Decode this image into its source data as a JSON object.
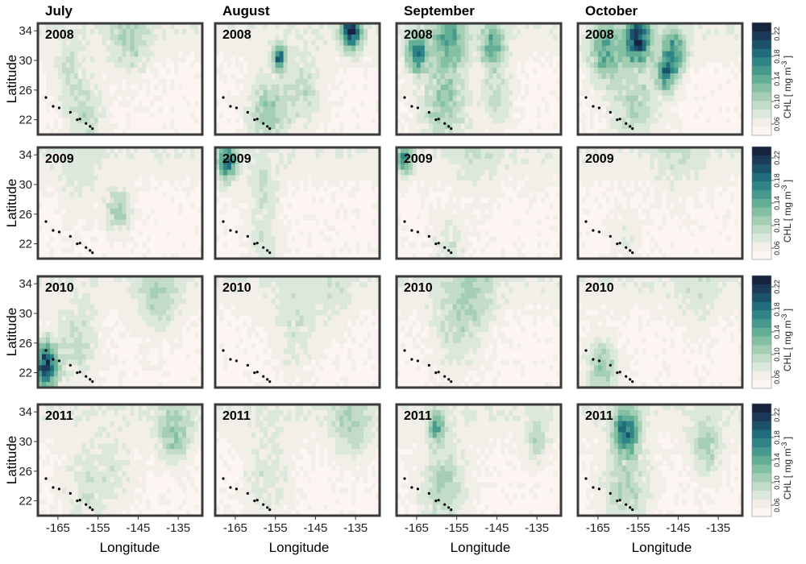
{
  "chart_data": {
    "type": "heatmap",
    "months": [
      "July",
      "August",
      "September",
      "October"
    ],
    "years": [
      "2008",
      "2009",
      "2010",
      "2011"
    ],
    "xlabel": "Longitude",
    "ylabel": "Latitude",
    "x_ticks": [
      -165,
      -155,
      -145,
      -135
    ],
    "x_tick_labels": [
      "-165",
      "-155",
      "-145",
      "-135"
    ],
    "xlim": [
      -170,
      -129
    ],
    "y_ticks": [
      22,
      26,
      30,
      34
    ],
    "y_tick_labels": [
      "22",
      "26",
      "30",
      "34"
    ],
    "ylim": [
      20,
      35
    ],
    "colorbar": {
      "label": "CHL [ mg m^-3 ]",
      "label_main": "CHL [ mg m",
      "label_exp": "-3",
      "label_close": " ]",
      "ticks": [
        0.06,
        0.1,
        0.14,
        0.18,
        0.22
      ],
      "tick_labels": [
        "0.06",
        "0.10",
        "0.14",
        "0.18",
        "0.22"
      ],
      "range": [
        0.04,
        0.24
      ]
    },
    "colors": [
      "#fdf5f2",
      "#f2efe9",
      "#dde8dc",
      "#c3dcc9",
      "#a4cfb5",
      "#84c0a3",
      "#63ae95",
      "#469a8d",
      "#2f8586",
      "#1f6c7b",
      "#1b526a",
      "#1a3a57",
      "#16243e"
    ],
    "hotspots": [
      {
        "panel": [
          0,
          0
        ],
        "lon": -147,
        "lat": 33,
        "r": 5,
        "v": 0.08
      },
      {
        "panel": [
          0,
          0
        ],
        "lon": -158,
        "lat": 22.5,
        "r": 5,
        "v": 0.08
      },
      {
        "panel": [
          0,
          0
        ],
        "lon": -162,
        "lat": 28,
        "r": 4,
        "v": 0.07
      },
      {
        "panel": [
          0,
          1
        ],
        "lon": -136,
        "lat": 34,
        "r": 2.5,
        "v": 0.2
      },
      {
        "panel": [
          0,
          1
        ],
        "lon": -154,
        "lat": 30.5,
        "r": 1.5,
        "v": 0.19
      },
      {
        "panel": [
          0,
          1
        ],
        "lon": -157,
        "lat": 23,
        "r": 5,
        "v": 0.1
      },
      {
        "panel": [
          0,
          1
        ],
        "lon": -148,
        "lat": 26,
        "r": 5,
        "v": 0.08
      },
      {
        "panel": [
          0,
          2
        ],
        "lon": -157,
        "lat": 33,
        "r": 4,
        "v": 0.12
      },
      {
        "panel": [
          0,
          2
        ],
        "lon": -165,
        "lat": 31,
        "r": 2.5,
        "v": 0.16
      },
      {
        "panel": [
          0,
          2
        ],
        "lon": -146,
        "lat": 32,
        "r": 3,
        "v": 0.12
      },
      {
        "panel": [
          0,
          2
        ],
        "lon": -158,
        "lat": 24,
        "r": 6,
        "v": 0.1
      },
      {
        "panel": [
          0,
          2
        ],
        "lon": -145,
        "lat": 25,
        "r": 4,
        "v": 0.08
      },
      {
        "panel": [
          0,
          3
        ],
        "lon": -155,
        "lat": 33,
        "r": 3,
        "v": 0.19
      },
      {
        "panel": [
          0,
          3
        ],
        "lon": -163,
        "lat": 31,
        "r": 4,
        "v": 0.12
      },
      {
        "panel": [
          0,
          3
        ],
        "lon": -146,
        "lat": 31,
        "r": 3,
        "v": 0.14
      },
      {
        "panel": [
          0,
          3
        ],
        "lon": -148,
        "lat": 28,
        "r": 2.5,
        "v": 0.13
      },
      {
        "panel": [
          0,
          3
        ],
        "lon": -156,
        "lat": 24,
        "r": 6,
        "v": 0.09
      },
      {
        "panel": [
          1,
          0
        ],
        "lon": -150,
        "lat": 26.5,
        "r": 3,
        "v": 0.1
      },
      {
        "panel": [
          1,
          0
        ],
        "lon": -160,
        "lat": 30,
        "r": 5,
        "v": 0.06
      },
      {
        "panel": [
          1,
          1
        ],
        "lon": -167,
        "lat": 33,
        "r": 2.5,
        "v": 0.15
      },
      {
        "panel": [
          1,
          1
        ],
        "lon": -158,
        "lat": 29,
        "r": 4,
        "v": 0.07
      },
      {
        "panel": [
          1,
          1
        ],
        "lon": -158,
        "lat": 22,
        "r": 4,
        "v": 0.07
      },
      {
        "panel": [
          1,
          2
        ],
        "lon": -168,
        "lat": 33.5,
        "r": 2,
        "v": 0.14
      },
      {
        "panel": [
          1,
          2
        ],
        "lon": -157,
        "lat": 22,
        "r": 4,
        "v": 0.07
      },
      {
        "panel": [
          1,
          2
        ],
        "lon": -150,
        "lat": 34,
        "r": 6,
        "v": 0.06
      },
      {
        "panel": [
          1,
          3
        ],
        "lon": -145,
        "lat": 34,
        "r": 6,
        "v": 0.06
      },
      {
        "panel": [
          1,
          3
        ],
        "lon": -158,
        "lat": 23,
        "r": 4,
        "v": 0.06
      },
      {
        "panel": [
          2,
          0
        ],
        "lon": -168,
        "lat": 23,
        "r": 3,
        "v": 0.2
      },
      {
        "panel": [
          2,
          0
        ],
        "lon": -160,
        "lat": 26,
        "r": 5,
        "v": 0.08
      },
      {
        "panel": [
          2,
          0
        ],
        "lon": -140,
        "lat": 32,
        "r": 5,
        "v": 0.08
      },
      {
        "panel": [
          2,
          1
        ],
        "lon": -150,
        "lat": 28,
        "r": 6,
        "v": 0.07
      },
      {
        "panel": [
          2,
          1
        ],
        "lon": -140,
        "lat": 32,
        "r": 4,
        "v": 0.06
      },
      {
        "panel": [
          2,
          2
        ],
        "lon": -155,
        "lat": 28,
        "r": 6,
        "v": 0.08
      },
      {
        "panel": [
          2,
          2
        ],
        "lon": -150,
        "lat": 33,
        "r": 5,
        "v": 0.07
      },
      {
        "panel": [
          2,
          3
        ],
        "lon": -164,
        "lat": 22.5,
        "r": 4,
        "v": 0.1
      },
      {
        "panel": [
          2,
          3
        ],
        "lon": -140,
        "lat": 32,
        "r": 5,
        "v": 0.06
      },
      {
        "panel": [
          3,
          0
        ],
        "lon": -136,
        "lat": 31,
        "r": 4,
        "v": 0.1
      },
      {
        "panel": [
          3,
          0
        ],
        "lon": -158,
        "lat": 24,
        "r": 6,
        "v": 0.07
      },
      {
        "panel": [
          3,
          0
        ],
        "lon": -150,
        "lat": 26,
        "r": 5,
        "v": 0.06
      },
      {
        "panel": [
          3,
          1
        ],
        "lon": -136,
        "lat": 32,
        "r": 5,
        "v": 0.08
      },
      {
        "panel": [
          3,
          1
        ],
        "lon": -157,
        "lat": 25,
        "r": 6,
        "v": 0.07
      },
      {
        "panel": [
          3,
          2
        ],
        "lon": -158,
        "lat": 24,
        "r": 6,
        "v": 0.09
      },
      {
        "panel": [
          3,
          2
        ],
        "lon": -160,
        "lat": 32,
        "r": 2,
        "v": 0.12
      },
      {
        "panel": [
          3,
          2
        ],
        "lon": -135,
        "lat": 30,
        "r": 3,
        "v": 0.08
      },
      {
        "panel": [
          3,
          3
        ],
        "lon": -158,
        "lat": 31.5,
        "r": 3,
        "v": 0.16
      },
      {
        "panel": [
          3,
          3
        ],
        "lon": -158,
        "lat": 24,
        "r": 6,
        "v": 0.09
      },
      {
        "panel": [
          3,
          3
        ],
        "lon": -138,
        "lat": 29,
        "r": 4,
        "v": 0.09
      }
    ],
    "islands": [
      {
        "lon": -168,
        "lat": 25.0
      },
      {
        "lon": -166.2,
        "lat": 23.8
      },
      {
        "lon": -164.7,
        "lat": 23.6
      },
      {
        "lon": -161.9,
        "lat": 23.0
      },
      {
        "lon": -160.2,
        "lat": 22.0
      },
      {
        "lon": -159.5,
        "lat": 22.1
      },
      {
        "lon": -158.0,
        "lat": 21.5
      },
      {
        "lon": -157.0,
        "lat": 21.1
      },
      {
        "lon": -156.4,
        "lat": 20.8
      },
      {
        "lon": -155.5,
        "lat": 19.8
      }
    ]
  }
}
